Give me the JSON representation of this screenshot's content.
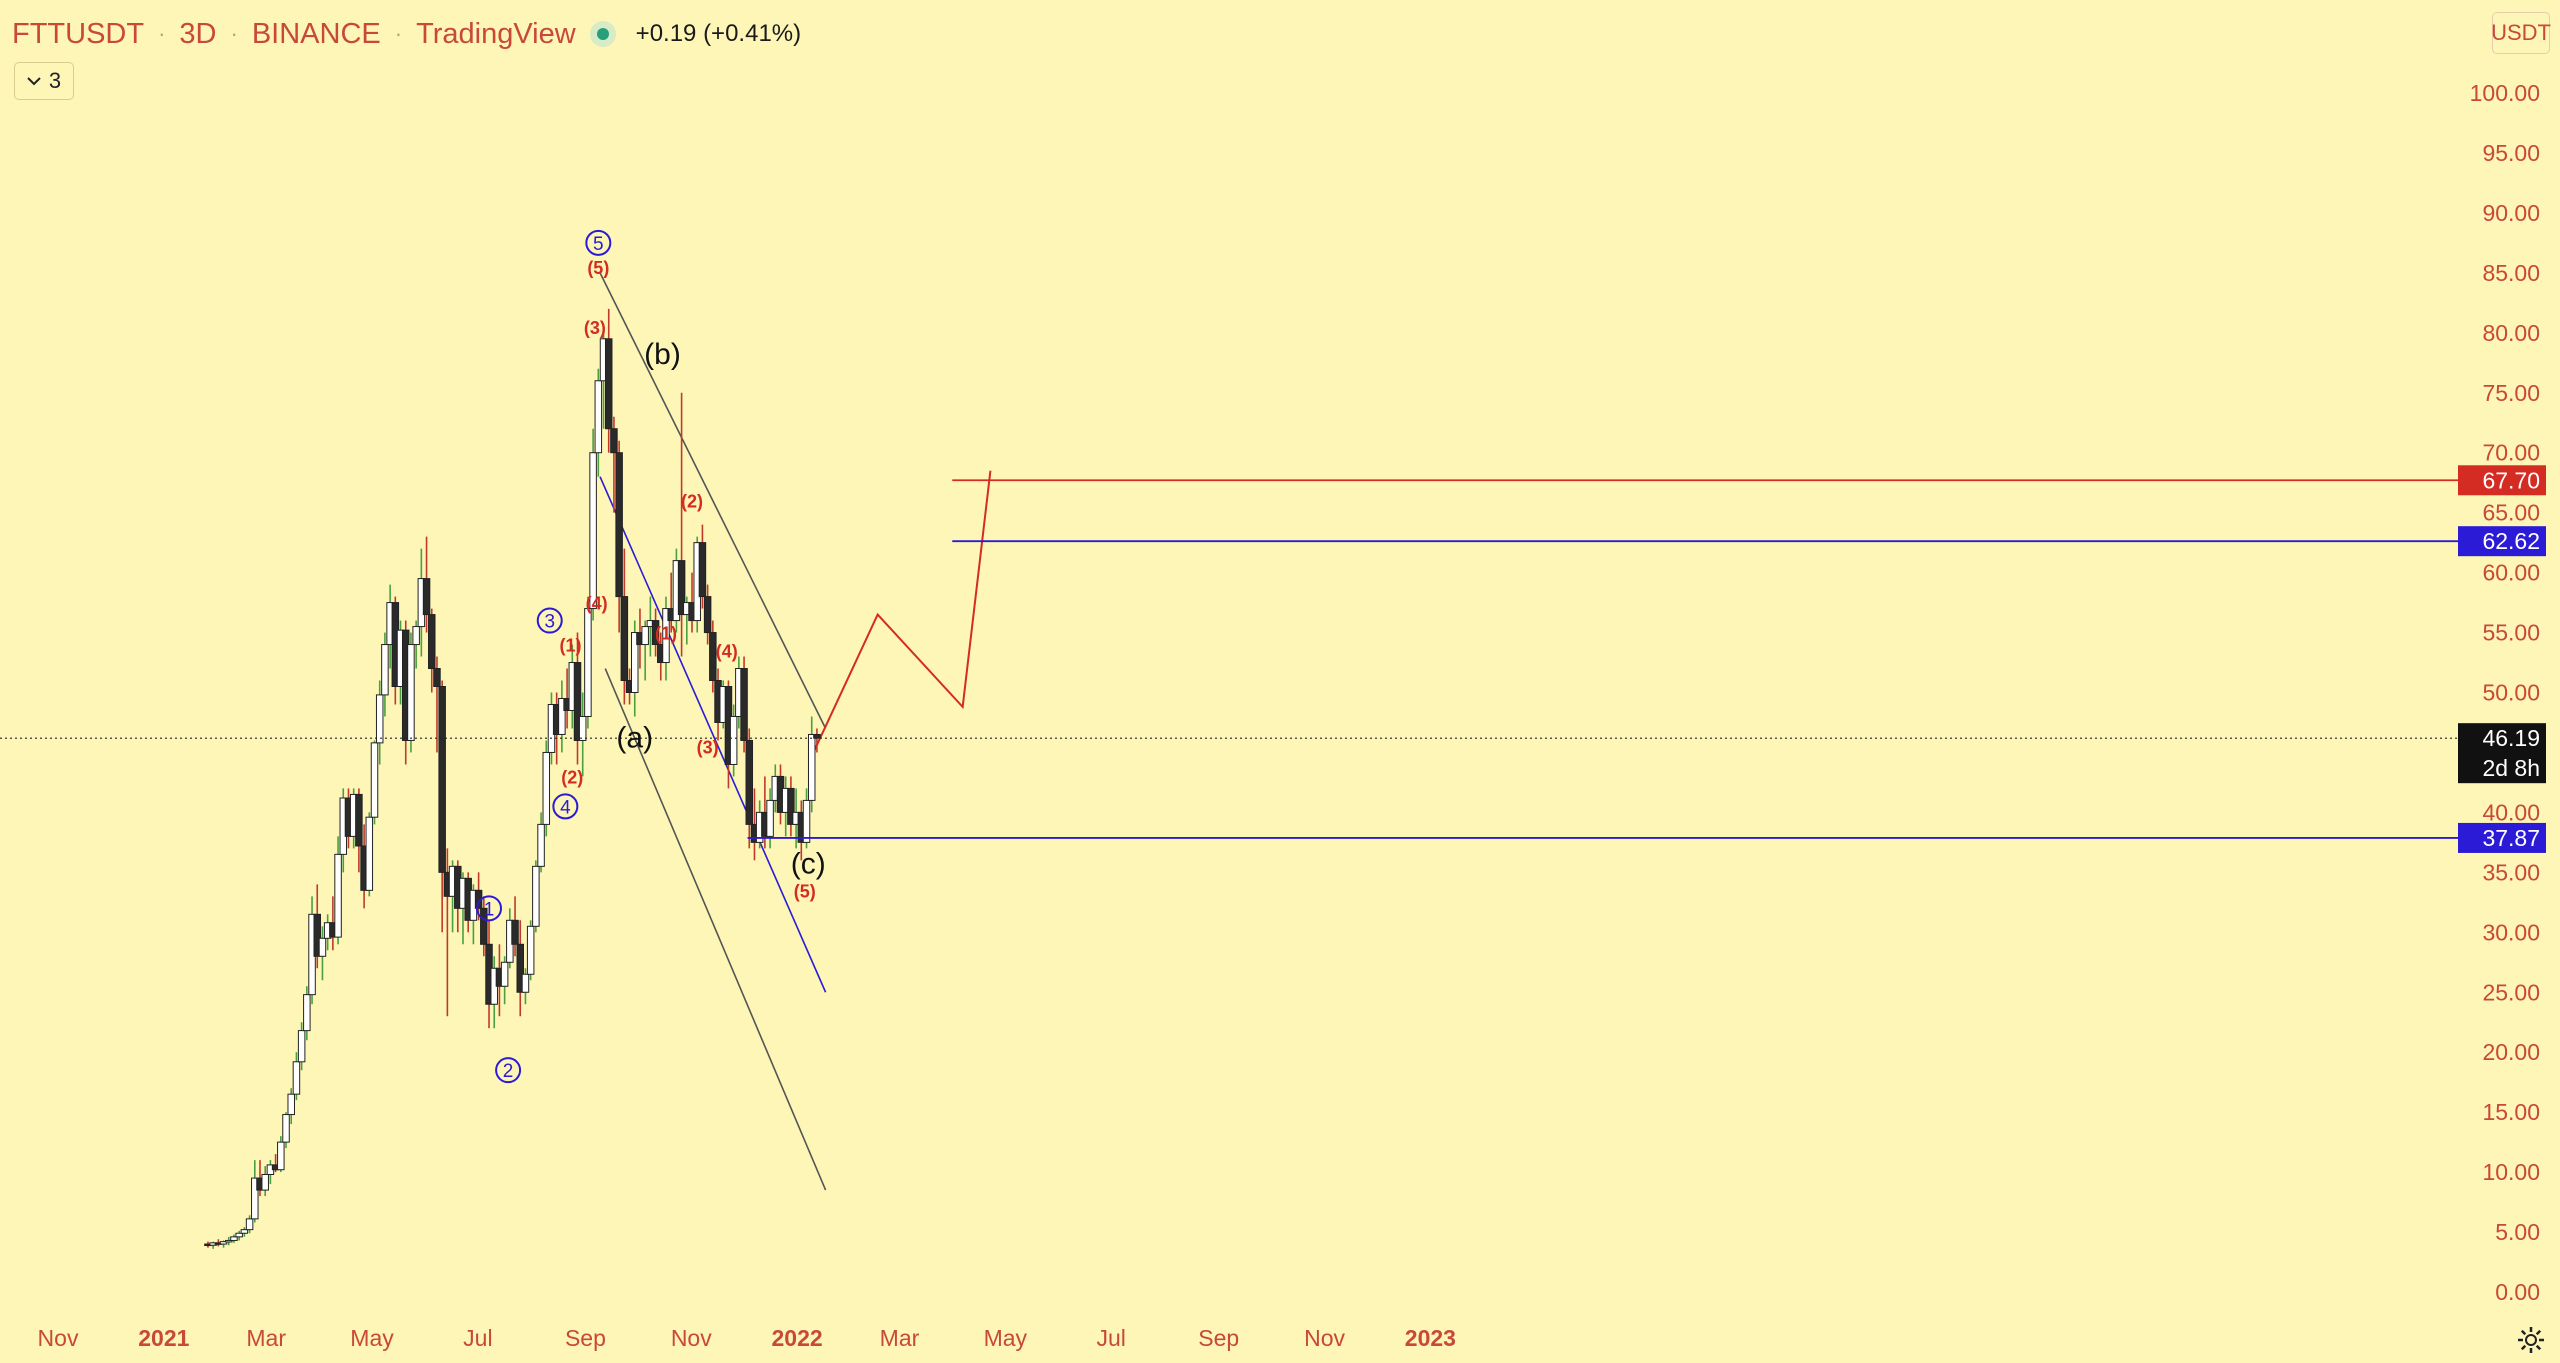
{
  "header": {
    "symbol": "FTTUSDT",
    "interval": "3D",
    "exchange": "BINANCE",
    "source": "TradingView",
    "change": "+0.19 (+0.41%)",
    "indicator_count": "3"
  },
  "currency_button": "USDT",
  "colors": {
    "background": "#fdf6b7",
    "axis_text": "#c8483a",
    "up_candle": "#ffffff",
    "down_candle": "#2a2a2a",
    "wick_up": "#4aa040",
    "wick_down": "#c0392b",
    "blue": "#2b1bd6",
    "red": "#d42b22",
    "gray_line": "#555555"
  },
  "price_axis": {
    "ticks": [
      "100.00",
      "95.00",
      "90.00",
      "85.00",
      "80.00",
      "75.00",
      "70.00",
      "65.00",
      "60.00",
      "55.00",
      "50.00",
      "45.00",
      "40.00",
      "35.00",
      "30.00",
      "25.00",
      "20.00",
      "15.00",
      "10.00",
      "5.00",
      "0.00"
    ]
  },
  "time_axis": {
    "labels": [
      {
        "t": "Nov",
        "bold": false
      },
      {
        "t": "2021",
        "bold": true
      },
      {
        "t": "Mar",
        "bold": false
      },
      {
        "t": "May",
        "bold": false
      },
      {
        "t": "Jul",
        "bold": false
      },
      {
        "t": "Sep",
        "bold": false
      },
      {
        "t": "Nov",
        "bold": false
      },
      {
        "t": "2022",
        "bold": true
      },
      {
        "t": "Mar",
        "bold": false
      },
      {
        "t": "May",
        "bold": false
      },
      {
        "t": "Jul",
        "bold": false
      },
      {
        "t": "Sep",
        "bold": false
      },
      {
        "t": "Nov",
        "bold": false
      },
      {
        "t": "2023",
        "bold": true
      }
    ]
  },
  "price_tags": [
    {
      "value": "67.70",
      "price": 67.7,
      "bg": "#d42b22"
    },
    {
      "value": "62.62",
      "price": 62.62,
      "bg": "#2b1bd6"
    },
    {
      "value": "46.19",
      "price": 46.19,
      "bg": "#111111",
      "sub": "2d 8h"
    },
    {
      "value": "37.87",
      "price": 37.87,
      "bg": "#2b1bd6"
    }
  ],
  "chart_data": {
    "type": "candlestick",
    "symbol": "FTTUSDT",
    "interval": "3D",
    "y_range": [
      0,
      100
    ],
    "current_price": 46.19,
    "ohlc": [
      [
        4,
        4.2,
        3.7,
        3.9
      ],
      [
        3.9,
        4.2,
        3.6,
        4.1
      ],
      [
        4.1,
        4.4,
        3.8,
        4.0
      ],
      [
        4,
        4.3,
        3.7,
        4.2
      ],
      [
        4.2,
        4.6,
        3.9,
        4.3
      ],
      [
        4.3,
        4.8,
        4.1,
        4.6
      ],
      [
        4.6,
        5.1,
        4.3,
        4.9
      ],
      [
        4.9,
        5.4,
        4.6,
        5.2
      ],
      [
        5.2,
        6.4,
        4.9,
        6.1
      ],
      [
        6.1,
        11,
        5.8,
        9.5
      ],
      [
        9.5,
        11,
        8,
        8.5
      ],
      [
        8.5,
        10.5,
        8,
        9.8
      ],
      [
        9.8,
        11,
        9,
        10.6
      ],
      [
        10.6,
        11.5,
        10,
        10.2
      ],
      [
        10.2,
        13,
        10,
        12.5
      ],
      [
        12.5,
        15,
        12,
        14.8
      ],
      [
        14.8,
        17,
        14,
        16.5
      ],
      [
        16.5,
        20,
        16,
        19.2
      ],
      [
        19.2,
        22.5,
        18.5,
        21.8
      ],
      [
        21.8,
        25.5,
        21,
        24.8
      ],
      [
        24.8,
        33,
        24,
        31.5
      ],
      [
        31.5,
        34,
        27,
        28
      ],
      [
        28,
        30.5,
        26,
        29.5
      ],
      [
        29.5,
        31.5,
        28.5,
        30.8
      ],
      [
        30.8,
        33,
        28.5,
        29.6
      ],
      [
        29.6,
        38,
        29,
        36.5
      ],
      [
        36.5,
        42,
        35,
        41.2
      ],
      [
        41.2,
        42,
        37,
        38
      ],
      [
        38,
        42,
        37,
        41.5
      ],
      [
        41.5,
        42,
        35,
        37.2
      ],
      [
        37.2,
        39,
        32,
        33.5
      ],
      [
        33.5,
        40,
        33,
        39.6
      ],
      [
        39.6,
        46,
        39,
        45.8
      ],
      [
        45.8,
        51,
        44,
        49.8
      ],
      [
        49.8,
        55,
        48,
        54
      ],
      [
        54,
        59,
        52,
        57.5
      ],
      [
        57.5,
        58,
        49,
        50.5
      ],
      [
        50.5,
        56,
        49,
        55.2
      ],
      [
        55.2,
        56,
        44,
        46
      ],
      [
        46,
        55,
        45,
        54
      ],
      [
        54,
        56,
        52,
        55.5
      ],
      [
        55.5,
        62,
        53,
        59.5
      ],
      [
        59.5,
        63,
        55,
        56.5
      ],
      [
        56.5,
        57,
        50,
        52
      ],
      [
        52,
        53,
        45,
        50.5
      ],
      [
        50.5,
        51,
        30,
        35
      ],
      [
        35,
        37,
        23,
        33
      ],
      [
        33,
        36,
        30,
        35.5
      ],
      [
        35.5,
        36,
        30,
        32
      ],
      [
        32,
        35,
        29,
        34.5
      ],
      [
        34.5,
        35,
        30,
        31
      ],
      [
        31,
        34,
        29,
        33.5
      ],
      [
        33.5,
        35,
        31,
        32
      ],
      [
        32,
        33,
        28,
        29
      ],
      [
        29,
        31,
        22,
        24
      ],
      [
        24,
        28,
        22,
        27
      ],
      [
        27,
        29,
        23,
        25.5
      ],
      [
        25.5,
        28,
        24,
        27.5
      ],
      [
        27.5,
        32,
        27,
        31
      ],
      [
        31,
        33,
        28,
        29
      ],
      [
        29,
        31,
        23,
        25
      ],
      [
        25,
        27,
        24,
        26.5
      ],
      [
        26.5,
        31,
        26,
        30.5
      ],
      [
        30.5,
        36,
        30,
        35.5
      ],
      [
        35.5,
        40,
        35,
        39
      ],
      [
        39,
        46,
        38,
        45
      ],
      [
        45,
        50,
        44,
        49
      ],
      [
        49,
        50,
        44,
        46.5
      ],
      [
        46.5,
        51,
        45,
        49.5
      ],
      [
        49.5,
        52,
        47,
        48.5
      ],
      [
        48.5,
        54,
        47,
        52.5
      ],
      [
        52.5,
        55,
        44,
        46
      ],
      [
        46,
        50,
        43,
        48
      ],
      [
        48,
        58,
        47,
        57
      ],
      [
        57,
        72,
        56,
        70
      ],
      [
        70,
        77,
        68,
        76
      ],
      [
        76,
        80,
        72,
        79.5
      ],
      [
        79.5,
        82,
        70,
        72
      ],
      [
        72,
        73,
        65,
        70
      ],
      [
        70,
        71,
        55,
        58
      ],
      [
        58,
        62,
        49,
        51
      ],
      [
        51,
        52,
        49,
        50
      ],
      [
        50,
        56,
        48,
        55
      ],
      [
        55,
        57,
        52,
        54
      ],
      [
        54,
        56,
        51,
        55.5
      ],
      [
        55.5,
        58,
        53,
        56
      ],
      [
        56,
        57,
        53,
        54
      ],
      [
        54,
        55,
        51,
        52.5
      ],
      [
        52.5,
        58,
        51,
        57
      ],
      [
        57,
        60,
        55,
        56
      ],
      [
        56,
        62,
        55,
        61
      ],
      [
        61,
        75,
        53,
        56.5
      ],
      [
        56.5,
        58,
        54,
        57.5
      ],
      [
        57.5,
        60,
        55,
        56
      ],
      [
        56,
        63,
        55,
        62.5
      ],
      [
        62.5,
        64,
        57,
        58
      ],
      [
        58,
        59,
        54,
        55
      ],
      [
        55,
        56,
        50,
        51
      ],
      [
        51,
        52,
        46,
        47.5
      ],
      [
        47.5,
        51,
        47,
        50.5
      ],
      [
        50.5,
        51,
        42,
        44
      ],
      [
        44,
        49,
        43,
        48
      ],
      [
        48,
        53,
        47,
        52
      ],
      [
        52,
        53,
        45,
        46
      ],
      [
        46,
        47,
        37,
        39
      ],
      [
        39,
        42,
        36,
        37.5
      ],
      [
        37.5,
        41,
        37,
        40
      ],
      [
        40,
        43,
        37,
        38
      ],
      [
        38,
        42,
        37,
        41
      ],
      [
        41,
        44,
        40,
        43
      ],
      [
        43,
        44,
        39,
        40
      ],
      [
        40,
        43,
        38,
        42
      ],
      [
        42,
        43,
        38,
        39
      ],
      [
        39,
        42,
        37,
        40
      ],
      [
        40,
        41,
        36,
        37.5
      ],
      [
        37.5,
        42,
        37,
        41
      ],
      [
        41,
        48,
        40,
        46.5
      ],
      [
        46.5,
        47,
        45,
        46.19
      ]
    ],
    "elliott_wave_labels": [
      {
        "text": "1",
        "style": "circle",
        "date": "2021-07-08",
        "price": 32
      },
      {
        "text": "2",
        "style": "circle",
        "date": "2021-07-19",
        "price": 18.5
      },
      {
        "text": "3",
        "style": "circle",
        "date": "2021-08-12",
        "price": 56
      },
      {
        "text": "4",
        "style": "circle",
        "date": "2021-08-21",
        "price": 40.5
      },
      {
        "text": "5",
        "style": "circle",
        "date": "2021-09-09",
        "price": 87.5
      },
      {
        "text": "(1)",
        "style": "red",
        "date": "2021-08-24",
        "price": 54
      },
      {
        "text": "(2)",
        "style": "red",
        "date": "2021-08-25",
        "price": 43
      },
      {
        "text": "(3)",
        "style": "red",
        "date": "2021-09-07",
        "price": 80.5
      },
      {
        "text": "(4)",
        "style": "red",
        "date": "2021-09-08",
        "price": 57.5
      },
      {
        "text": "(5)",
        "style": "red",
        "date": "2021-09-09",
        "price": 85.5
      },
      {
        "text": "(1)",
        "style": "red",
        "date": "2021-10-18",
        "price": 55
      },
      {
        "text": "(2)",
        "style": "red",
        "date": "2021-11-02",
        "price": 66
      },
      {
        "text": "(3)",
        "style": "red",
        "date": "2021-11-11",
        "price": 45.5
      },
      {
        "text": "(4)",
        "style": "red",
        "date": "2021-11-22",
        "price": 53.5
      },
      {
        "text": "(5)",
        "style": "red",
        "date": "2022-01-06",
        "price": 33.5
      },
      {
        "text": "(a)",
        "style": "black",
        "date": "2021-09-30",
        "price": 46
      },
      {
        "text": "(b)",
        "style": "black",
        "date": "2021-10-16",
        "price": 78
      },
      {
        "text": "(c)",
        "style": "black",
        "date": "2022-01-08",
        "price": 35.5
      }
    ],
    "horizontal_levels": [
      {
        "price": 67.7,
        "color": "red",
        "from": "2022-04-01"
      },
      {
        "price": 62.62,
        "color": "blue",
        "from": "2022-04-01"
      },
      {
        "price": 37.87,
        "color": "blue",
        "from": "2021-12-04"
      }
    ],
    "trend_lines": [
      {
        "color": "gray",
        "points": [
          [
            "2021-09-10",
            85
          ],
          [
            "2022-01-18",
            47
          ]
        ]
      },
      {
        "color": "gray",
        "points": [
          [
            "2021-09-13",
            52
          ],
          [
            "2022-01-18",
            8.5
          ]
        ]
      },
      {
        "color": "blue",
        "points": [
          [
            "2021-09-10",
            68
          ],
          [
            "2022-01-18",
            25
          ]
        ]
      }
    ],
    "projection": {
      "color": "red",
      "points": [
        [
          "2022-01-11",
          45
        ],
        [
          "2022-02-17",
          56.5
        ],
        [
          "2022-04-07",
          48.8
        ],
        [
          "2022-04-23",
          68.5
        ]
      ]
    }
  }
}
